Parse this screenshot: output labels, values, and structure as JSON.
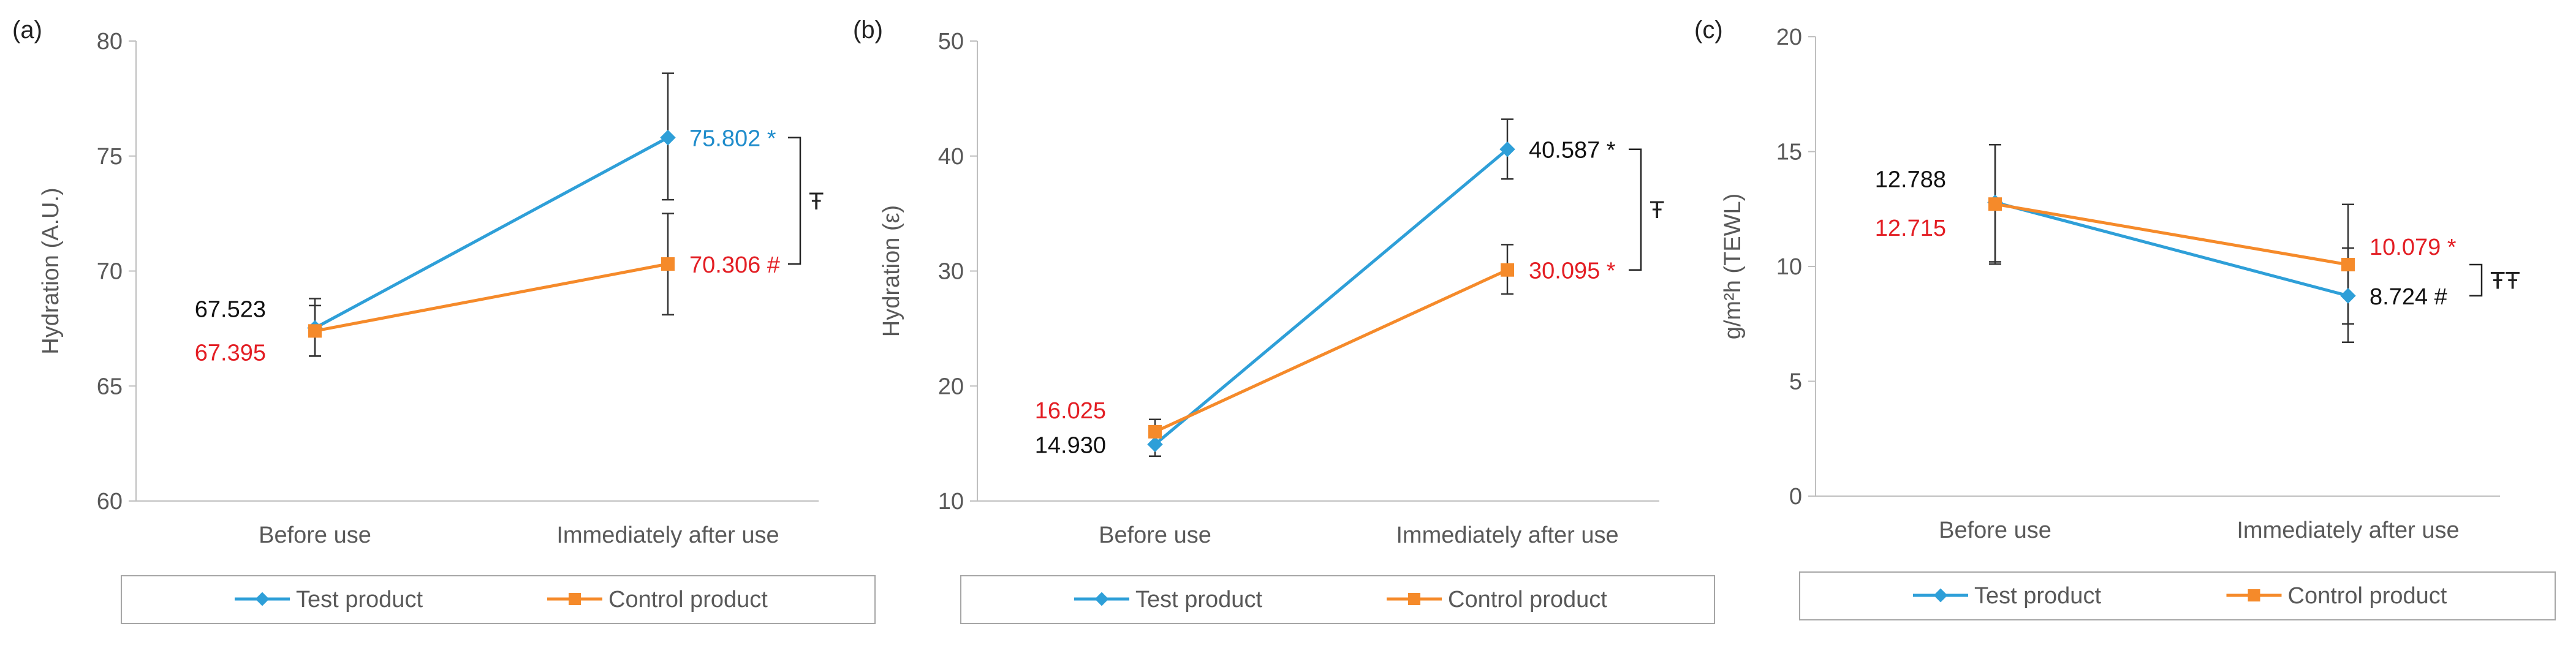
{
  "colors": {
    "test": "#2E9FD8",
    "control": "#F58A2A",
    "black": "#111111",
    "red": "#E31E24",
    "blue": "#1F8CCB",
    "axis": "#BFBFBF",
    "text": "#595959"
  },
  "chart_data": [
    {
      "type": "line",
      "panel_label": "(a)",
      "categories": [
        "Before use",
        "Immediately after use"
      ],
      "ylabel": "Hydration (A.U.)",
      "ylim": [
        60,
        80
      ],
      "yticks": [
        60,
        65,
        70,
        75,
        80
      ],
      "series": [
        {
          "name": "Test product",
          "values": [
            67.523,
            75.802
          ],
          "err_low": [
            66.3,
            73.1
          ],
          "err_high": [
            68.8,
            78.6
          ],
          "labels": [
            "67.523",
            "75.802 *"
          ],
          "label_colors": [
            "#111111",
            "#1F8CCB"
          ]
        },
        {
          "name": "Control product",
          "values": [
            67.395,
            70.306
          ],
          "err_low": [
            66.3,
            68.1
          ],
          "err_high": [
            68.5,
            72.5
          ],
          "labels": [
            "67.395",
            "70.306 #"
          ],
          "label_colors": [
            "#E31E24",
            "#E31E24"
          ]
        }
      ],
      "bracket_symbol": "Ŧ",
      "legend_position": "bottom"
    },
    {
      "type": "line",
      "panel_label": "(b)",
      "categories": [
        "Before use",
        "Immediately after use"
      ],
      "ylabel": "Hydration (ε)",
      "ylim": [
        10,
        50
      ],
      "yticks": [
        10,
        20,
        30,
        40,
        50
      ],
      "series": [
        {
          "name": "Test product",
          "values": [
            14.93,
            40.587
          ],
          "err_low": [
            13.9,
            38.0
          ],
          "err_high": [
            16.0,
            43.2
          ],
          "labels": [
            "14.930",
            "40.587 *"
          ],
          "label_colors": [
            "#111111",
            "#111111"
          ]
        },
        {
          "name": "Control product",
          "values": [
            16.025,
            30.095
          ],
          "err_low": [
            15.0,
            28.0
          ],
          "err_high": [
            17.1,
            32.3
          ],
          "labels": [
            "16.025",
            "30.095 *"
          ],
          "label_colors": [
            "#E31E24",
            "#E31E24"
          ]
        }
      ],
      "bracket_symbol": "Ŧ",
      "legend_position": "bottom"
    },
    {
      "type": "line",
      "panel_label": "(c)",
      "categories": [
        "Before use",
        "Immediately after use"
      ],
      "ylabel": "g/m²h (TEWL)",
      "ylim": [
        0,
        20
      ],
      "yticks": [
        0,
        5,
        10,
        15,
        20
      ],
      "series": [
        {
          "name": "Test product",
          "values": [
            12.788,
            8.724
          ],
          "err_low": [
            10.2,
            6.7
          ],
          "err_high": [
            15.3,
            10.8
          ],
          "labels": [
            "12.788",
            "8.724 #"
          ],
          "label_colors": [
            "#111111",
            "#111111"
          ]
        },
        {
          "name": "Control product",
          "values": [
            12.715,
            10.079
          ],
          "err_low": [
            10.1,
            7.5
          ],
          "err_high": [
            15.3,
            12.7
          ],
          "labels": [
            "12.715",
            "10.079 *"
          ],
          "label_colors": [
            "#E31E24",
            "#E31E24"
          ]
        }
      ],
      "bracket_symbol": "ŦŦ",
      "legend_position": "bottom"
    }
  ]
}
